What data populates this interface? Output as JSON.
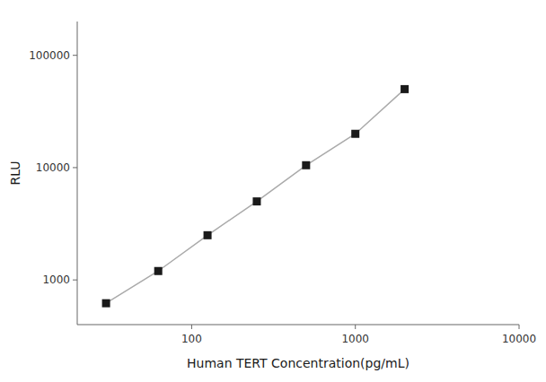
{
  "chart_data": {
    "type": "line",
    "x": [
      30,
      62.5,
      125,
      250,
      500,
      1000,
      2000
    ],
    "values": [
      620,
      1200,
      2500,
      5000,
      10500,
      20000,
      50000
    ],
    "xlabel": "Human TERT Concentration(pg/mL)",
    "ylabel": "RLU",
    "xlim": [
      20,
      10000
    ],
    "ylim": [
      400,
      200000
    ],
    "xticks": [
      100,
      1000,
      10000
    ],
    "yticks": [
      1000,
      10000,
      100000
    ],
    "log": true,
    "grid": false,
    "color": "#aaaaaa",
    "colors": [
      "#1a1a1a",
      "#1a1a1a",
      "#1a1a1a",
      "#1a1a1a",
      "#1a1a1a",
      "#1a1a1a",
      "#1a1a1a"
    ],
    "marker": "square",
    "line_style": "solid"
  }
}
